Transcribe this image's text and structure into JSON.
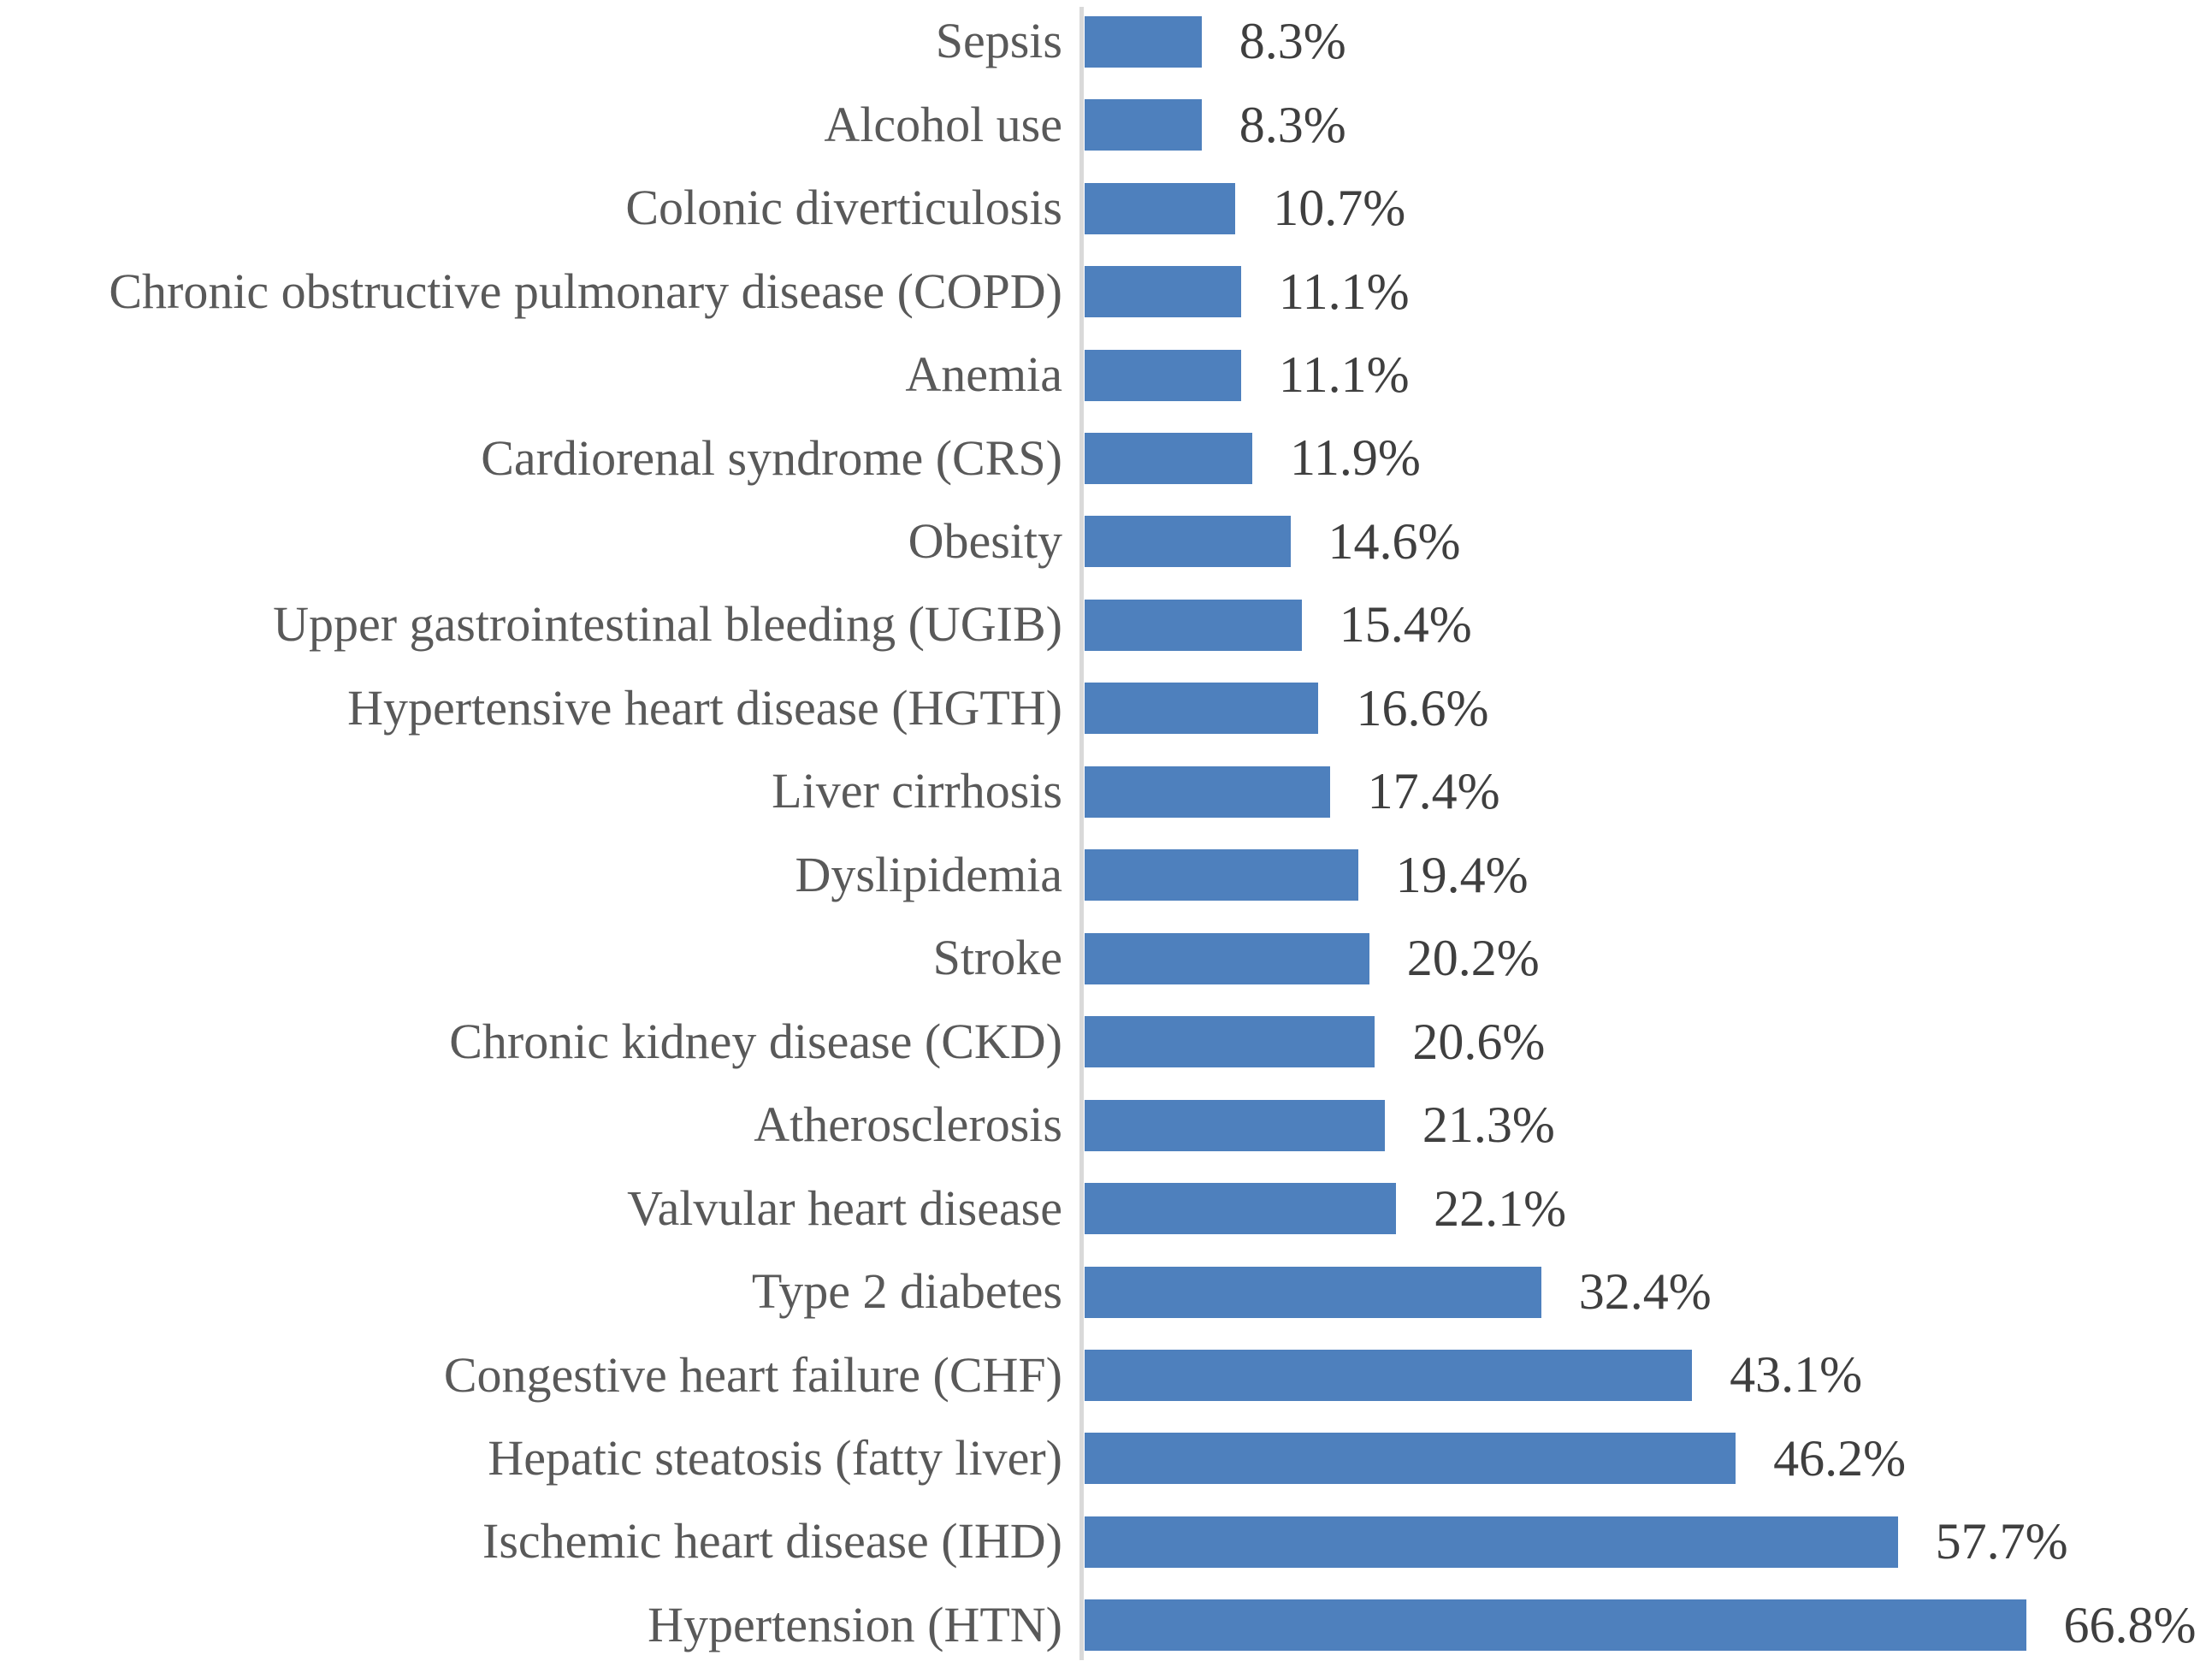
{
  "chart_data": {
    "type": "bar",
    "orientation": "horizontal",
    "title": "",
    "xlabel": "",
    "ylabel": "",
    "xlim": [
      0,
      80
    ],
    "grid": false,
    "legend": "none",
    "bar_color": "#4E80BD",
    "category_text_color": "#595959",
    "value_text_color": "#3F3F3F",
    "axis_line_color": "#D9D9D9",
    "categories": [
      "Sepsis",
      "Alcohol use",
      "Colonic diverticulosis",
      "Chronic obstructive pulmonary disease (COPD)",
      "Anemia",
      "Cardiorenal syndrome (CRS)",
      "Obesity",
      "Upper gastrointestinal bleeding (UGIB)",
      "Hypertensive heart disease (HGTH)",
      "Liver cirrhosis",
      "Dyslipidemia",
      "Stroke",
      "Chronic kidney disease (CKD)",
      "Atherosclerosis",
      "Valvular heart disease",
      "Type 2 diabetes",
      "Congestive heart failure (CHF)",
      "Hepatic steatosis (fatty liver)",
      "Ischemic heart disease (IHD)",
      "Hypertension (HTN)"
    ],
    "values": [
      8.3,
      8.3,
      10.7,
      11.1,
      11.1,
      11.9,
      14.6,
      15.4,
      16.6,
      17.4,
      19.4,
      20.2,
      20.6,
      21.3,
      22.1,
      32.4,
      43.1,
      46.2,
      57.7,
      66.8
    ],
    "labels": [
      "8.3%",
      "8.3%",
      "10.7%",
      "11.1%",
      "11.1%",
      "11.9%",
      "14.6%",
      "15.4%",
      "16.6%",
      "17.4%",
      "19.4%",
      "20.2%",
      "20.6%",
      "21.3%",
      "22.1%",
      "32.4%",
      "43.1%",
      "46.2%",
      "57.7%",
      "66.8%"
    ]
  }
}
